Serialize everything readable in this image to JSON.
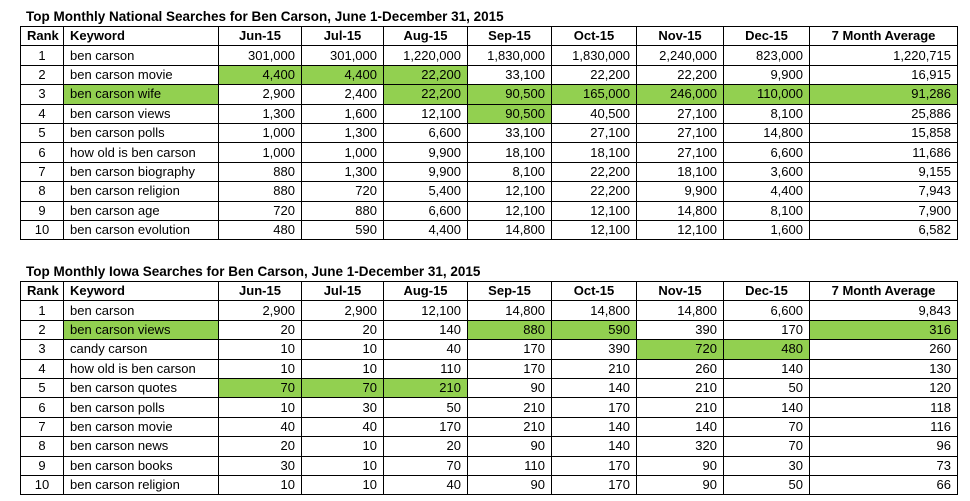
{
  "national": {
    "title": "Top Monthly National Searches for Ben Carson, June 1-December 31, 2015",
    "headers": [
      "Rank",
      "Keyword",
      "Jun-15",
      "Jul-15",
      "Aug-15",
      "Sep-15",
      "Oct-15",
      "Nov-15",
      "Dec-15",
      "7 Month Average"
    ],
    "rows": [
      [
        "1",
        "ben carson",
        "301,000",
        "301,000",
        "1,220,000",
        "1,830,000",
        "1,830,000",
        "2,240,000",
        "823,000",
        "1,220,715"
      ],
      [
        "2",
        "ben carson movie",
        "4,400",
        "4,400",
        "22,200",
        "33,100",
        "22,200",
        "22,200",
        "9,900",
        "16,915"
      ],
      [
        "3",
        "ben carson wife",
        "2,900",
        "2,400",
        "22,200",
        "90,500",
        "165,000",
        "246,000",
        "110,000",
        "91,286"
      ],
      [
        "4",
        "ben carson views",
        "1,300",
        "1,600",
        "12,100",
        "90,500",
        "40,500",
        "27,100",
        "8,100",
        "25,886"
      ],
      [
        "5",
        "ben carson polls",
        "1,000",
        "1,300",
        "6,600",
        "33,100",
        "27,100",
        "27,100",
        "14,800",
        "15,858"
      ],
      [
        "6",
        "how old is ben carson",
        "1,000",
        "1,000",
        "9,900",
        "18,100",
        "18,100",
        "27,100",
        "6,600",
        "11,686"
      ],
      [
        "7",
        "ben carson biography",
        "880",
        "1,300",
        "9,900",
        "8,100",
        "22,200",
        "18,100",
        "3,600",
        "9,155"
      ],
      [
        "8",
        "ben carson religion",
        "880",
        "720",
        "5,400",
        "12,100",
        "22,200",
        "9,900",
        "4,400",
        "7,943"
      ],
      [
        "9",
        "ben carson age",
        "720",
        "880",
        "6,600",
        "12,100",
        "12,100",
        "14,800",
        "8,100",
        "7,900"
      ],
      [
        "10",
        "ben carson evolution",
        "480",
        "590",
        "4,400",
        "14,800",
        "12,100",
        "12,100",
        "1,600",
        "6,582"
      ]
    ],
    "highlight_color": "#92d050",
    "highlights": [
      [
        1,
        2
      ],
      [
        1,
        3
      ],
      [
        1,
        4
      ],
      [
        2,
        1
      ],
      [
        2,
        4
      ],
      [
        2,
        5
      ],
      [
        2,
        6
      ],
      [
        2,
        7
      ],
      [
        2,
        8
      ],
      [
        2,
        9
      ],
      [
        3,
        5
      ]
    ]
  },
  "iowa": {
    "title": "Top Monthly Iowa Searches for Ben Carson, June 1-December 31, 2015",
    "headers": [
      "Rank",
      "Keyword",
      "Jun-15",
      "Jul-15",
      "Aug-15",
      "Sep-15",
      "Oct-15",
      "Nov-15",
      "Dec-15",
      "7 Month Average"
    ],
    "rows": [
      [
        "1",
        "ben carson",
        "2,900",
        "2,900",
        "12,100",
        "14,800",
        "14,800",
        "14,800",
        "6,600",
        "9,843"
      ],
      [
        "2",
        "ben carson views",
        "20",
        "20",
        "140",
        "880",
        "590",
        "390",
        "170",
        "316"
      ],
      [
        "3",
        "candy carson",
        "10",
        "10",
        "40",
        "170",
        "390",
        "720",
        "480",
        "260"
      ],
      [
        "4",
        "how old is ben carson",
        "10",
        "10",
        "110",
        "170",
        "210",
        "260",
        "140",
        "130"
      ],
      [
        "5",
        "ben carson quotes",
        "70",
        "70",
        "210",
        "90",
        "140",
        "210",
        "50",
        "120"
      ],
      [
        "6",
        "ben carson polls",
        "10",
        "30",
        "50",
        "210",
        "170",
        "210",
        "140",
        "118"
      ],
      [
        "7",
        "ben carson movie",
        "40",
        "40",
        "170",
        "210",
        "140",
        "140",
        "70",
        "116"
      ],
      [
        "8",
        "ben carson news",
        "20",
        "10",
        "20",
        "90",
        "140",
        "320",
        "70",
        "96"
      ],
      [
        "9",
        "ben carson books",
        "30",
        "10",
        "70",
        "110",
        "170",
        "90",
        "30",
        "73"
      ],
      [
        "10",
        "ben carson religion",
        "10",
        "10",
        "40",
        "90",
        "170",
        "90",
        "50",
        "66"
      ]
    ],
    "highlight_color": "#92d050",
    "highlights": [
      [
        1,
        1
      ],
      [
        1,
        5
      ],
      [
        1,
        6
      ],
      [
        1,
        9
      ],
      [
        2,
        7
      ],
      [
        2,
        8
      ],
      [
        4,
        2
      ],
      [
        4,
        3
      ],
      [
        4,
        4
      ]
    ]
  }
}
